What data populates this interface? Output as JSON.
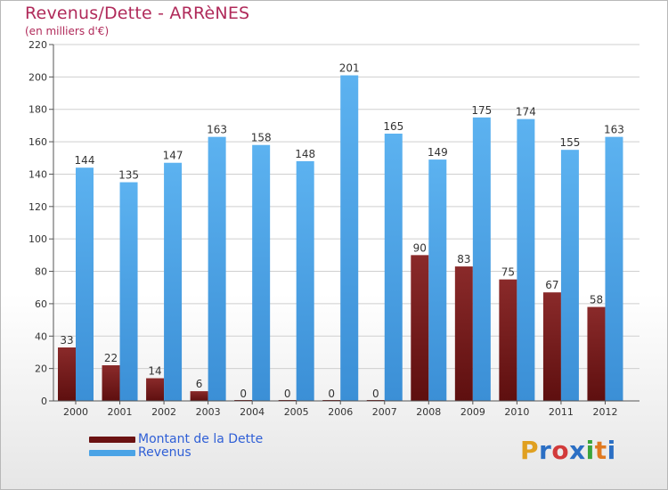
{
  "title": "Revenus/Dette - ARRèNES",
  "subtitle": "(en milliers d'€)",
  "colors": {
    "dette": "#7a1515",
    "revenus": "#4aa3e6",
    "title": "#b02a5a",
    "legend_text": "#2f5fd6"
  },
  "chart_data": {
    "type": "bar",
    "title": "Revenus/Dette - ARRèNES",
    "ylabel": "(en milliers d'€)",
    "categories": [
      "2000",
      "2001",
      "2002",
      "2003",
      "2004",
      "2005",
      "2006",
      "2007",
      "2008",
      "2009",
      "2010",
      "2011",
      "2012"
    ],
    "series": [
      {
        "name": "Montant de la Dette",
        "values": [
          33,
          22,
          14,
          6,
          0,
          0,
          0,
          0,
          90,
          83,
          75,
          67,
          58
        ]
      },
      {
        "name": "Revenus",
        "values": [
          144,
          135,
          147,
          163,
          158,
          148,
          201,
          165,
          149,
          175,
          174,
          155,
          163
        ]
      }
    ],
    "ylim": [
      0,
      220
    ],
    "yticks": [
      0,
      20,
      40,
      60,
      80,
      100,
      120,
      140,
      160,
      180,
      200,
      220
    ],
    "grid": true,
    "legend": "bottom-left"
  },
  "legend": {
    "items": [
      {
        "label": "Montant de la Dette"
      },
      {
        "label": "Revenus"
      }
    ]
  },
  "logo": {
    "letters": [
      "P",
      "r",
      "o",
      "x",
      "i",
      "t",
      "i"
    ],
    "colors": [
      "#e0a020",
      "#2b6fc4",
      "#d23a3a",
      "#2b6fc4",
      "#3aa53a",
      "#e07a20",
      "#2b6fc4"
    ]
  }
}
